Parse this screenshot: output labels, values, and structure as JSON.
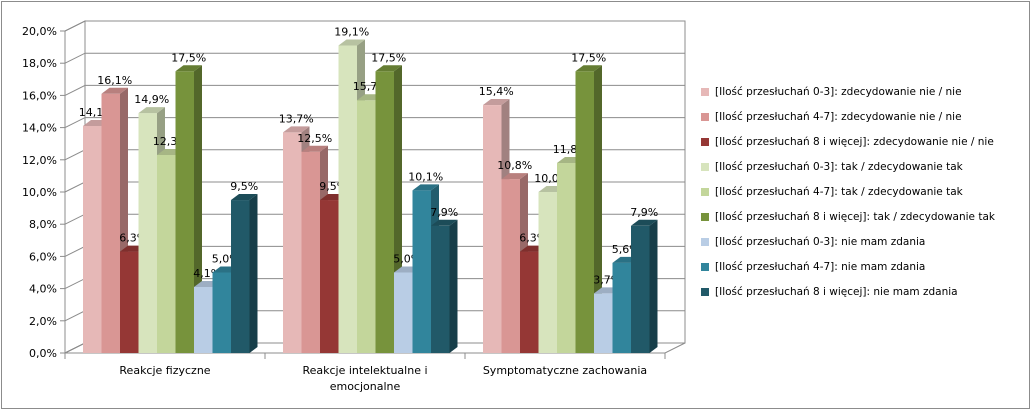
{
  "chart_data": {
    "type": "bar",
    "title": "",
    "xlabel": "",
    "ylabel": "",
    "ylim": [
      0,
      20
    ],
    "yticks": [
      "0,0%",
      "2,0%",
      "4,0%",
      "6,0%",
      "8,0%",
      "10,0%",
      "12,0%",
      "14,0%",
      "16,0%",
      "18,0%",
      "20,0%"
    ],
    "grid": true,
    "legend_position": "right",
    "categories": [
      [
        "Reakcje fizyczne"
      ],
      [
        "Reakcje intelektualne i",
        "emocjonalne"
      ],
      [
        "Symptomatyczne zachowania"
      ]
    ],
    "series": [
      {
        "name": "[Ilość przesłuchań 0-3]: zdecydowanie nie / nie",
        "color": "#e6b8b7",
        "values": [
          14.1,
          13.7,
          15.4
        ],
        "labels": [
          "14,1%",
          "13,7%",
          "15,4%"
        ]
      },
      {
        "name": "[Ilość przesłuchań 4-7]: zdecydowanie nie / nie",
        "color": "#d99694",
        "values": [
          16.1,
          12.5,
          10.8
        ],
        "labels": [
          "16,1%",
          "12,5%",
          "10,8%"
        ]
      },
      {
        "name": "[Ilość przesłuchań 8 i więcej]: zdecydowanie nie / nie",
        "color": "#953735",
        "values": [
          6.3,
          9.5,
          6.3
        ],
        "labels": [
          "6,3%",
          "9,5%",
          "6,3%"
        ]
      },
      {
        "name": "[Ilość przesłuchań 0-3]: tak / zdecydowanie tak",
        "color": "#d7e4bd",
        "values": [
          14.9,
          19.1,
          10.0
        ],
        "labels": [
          "14,9%",
          "19,1%",
          "10,0%"
        ]
      },
      {
        "name": "[Ilość przesłuchań 4-7]: tak / zdecydowanie tak",
        "color": "#c3d69b",
        "values": [
          12.3,
          15.7,
          11.8
        ],
        "labels": [
          "12,3%",
          "15,7%",
          "11,8%"
        ]
      },
      {
        "name": "[Ilość przesłuchań 8 i więcej]: tak / zdecydowanie tak",
        "color": "#77933c",
        "values": [
          17.5,
          17.5,
          17.5
        ],
        "labels": [
          "17,5%",
          "17,5%",
          "17,5%"
        ]
      },
      {
        "name": "[Ilość przesłuchań 0-3]: nie mam zdania",
        "color": "#b9cde5",
        "values": [
          4.1,
          5.0,
          3.7
        ],
        "labels": [
          "4,1%",
          "5,0%",
          "3,7%"
        ]
      },
      {
        "name": "[Ilość przesłuchań 4-7]: nie mam zdania",
        "color": "#31859c",
        "values": [
          5.0,
          10.1,
          5.6
        ],
        "labels": [
          "5,0%",
          "10,1%",
          "5,6%"
        ]
      },
      {
        "name": "[Ilość przesłuchań 8 i więcej]: nie mam zdania",
        "color": "#215968",
        "values": [
          9.5,
          7.9,
          7.9
        ],
        "labels": [
          "9,5%",
          "7,9%",
          "7,9%"
        ]
      }
    ]
  }
}
